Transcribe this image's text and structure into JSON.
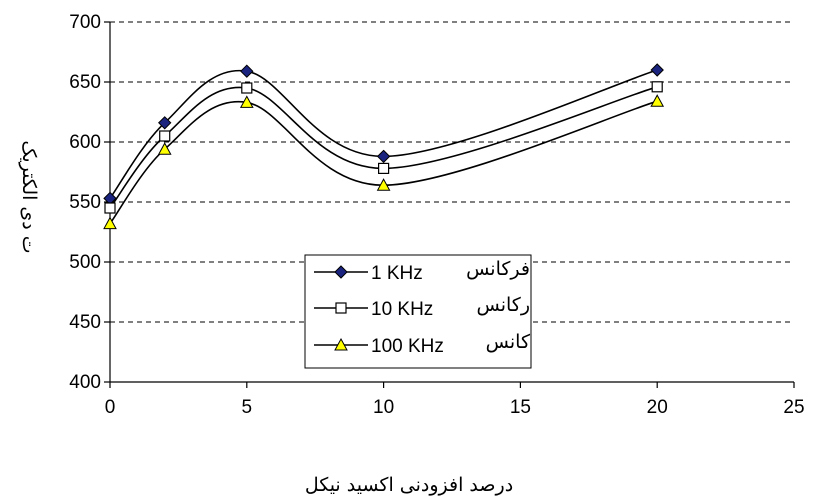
{
  "chart_data": {
    "type": "line",
    "xlabel": "درصد افزودنی اکسید نیکل",
    "ylabel": "ت دی الکتریک",
    "xlim": [
      0,
      25
    ],
    "ylim": [
      400,
      700
    ],
    "xticks": [
      0,
      5,
      10,
      15,
      20,
      25
    ],
    "yticks": [
      400,
      450,
      500,
      550,
      600,
      650,
      700
    ],
    "grid": "horizontal-dashed",
    "legend_position": "center",
    "x": [
      0,
      2,
      5,
      10,
      20
    ],
    "series": [
      {
        "name": "فرکانس 1 KHz",
        "display_name": "1 KHz",
        "display_prefix": "فرکانس",
        "marker": "diamond",
        "marker_color": "#1a237e",
        "values": [
          553,
          616,
          659,
          588,
          660
        ]
      },
      {
        "name": "رکانس 10 KHz",
        "display_name": "10 KHz",
        "display_prefix": "رکانس",
        "marker": "square",
        "marker_color": "#ffffff",
        "values": [
          545,
          605,
          645,
          578,
          646
        ]
      },
      {
        "name": "کانس 100 KHz",
        "display_name": "100 KHz",
        "display_prefix": "کانس",
        "marker": "triangle",
        "marker_color": "#ffff00",
        "values": [
          532,
          594,
          633,
          564,
          634
        ]
      }
    ]
  }
}
